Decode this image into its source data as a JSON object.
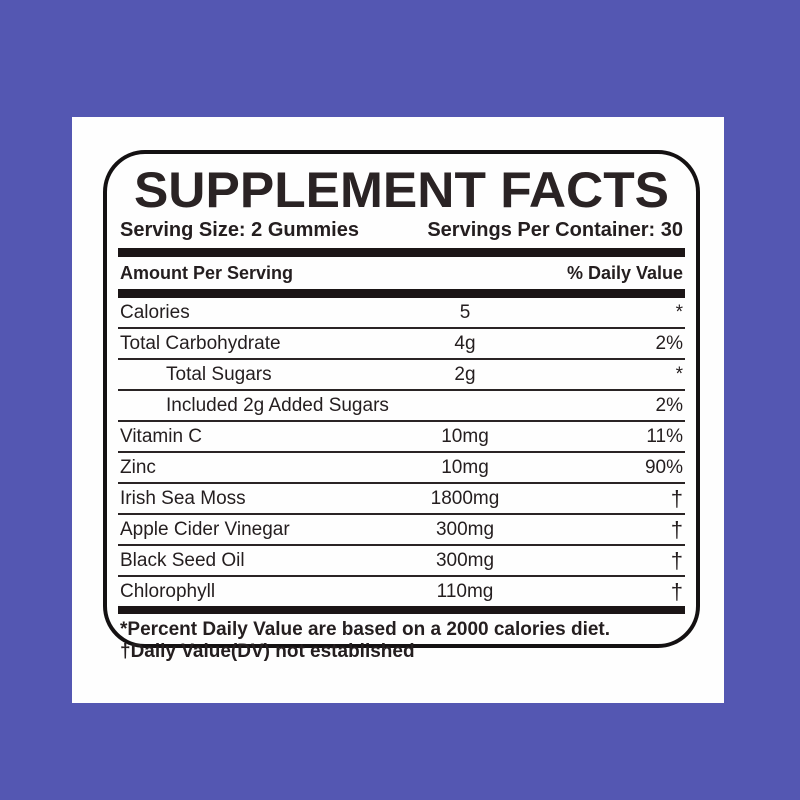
{
  "colors": {
    "background": "#5457b2",
    "card": "#fefefe",
    "border": "#141112",
    "bar": "#1b1516",
    "text": "#241e1f"
  },
  "label": {
    "title": "SUPPLEMENT FACTS",
    "serving_size": "Serving Size: 2 Gummies",
    "servings_per_container": "Servings Per Container: 30",
    "column_headers": {
      "amount": "Amount Per Serving",
      "daily_value": "% Daily Value"
    },
    "rows": [
      {
        "name": "Calories",
        "amount": "5",
        "dv": "*",
        "indent": false
      },
      {
        "name": "Total Carbohydrate",
        "amount": "4g",
        "dv": "2%",
        "indent": false
      },
      {
        "name": "Total Sugars",
        "amount": "2g",
        "dv": "*",
        "indent": true
      },
      {
        "name": "Included 2g Added Sugars",
        "amount": "",
        "dv": "2%",
        "indent": true
      },
      {
        "name": "Vitamin C",
        "amount": "10mg",
        "dv": "11%",
        "indent": false
      },
      {
        "name": "Zinc",
        "amount": "10mg",
        "dv": "90%",
        "indent": false
      },
      {
        "name": "Irish Sea Moss",
        "amount": "1800mg",
        "dv": "†",
        "indent": false
      },
      {
        "name": "Apple Cider Vinegar",
        "amount": "300mg",
        "dv": "†",
        "indent": false
      },
      {
        "name": "Black Seed Oil",
        "amount": "300mg",
        "dv": "†",
        "indent": false
      },
      {
        "name": "Chlorophyll",
        "amount": "110mg",
        "dv": "†",
        "indent": false
      }
    ],
    "footnotes": [
      "*Percent Daily Value are based on a 2000 calories diet.",
      "†Daily Value(DV) not established"
    ]
  }
}
